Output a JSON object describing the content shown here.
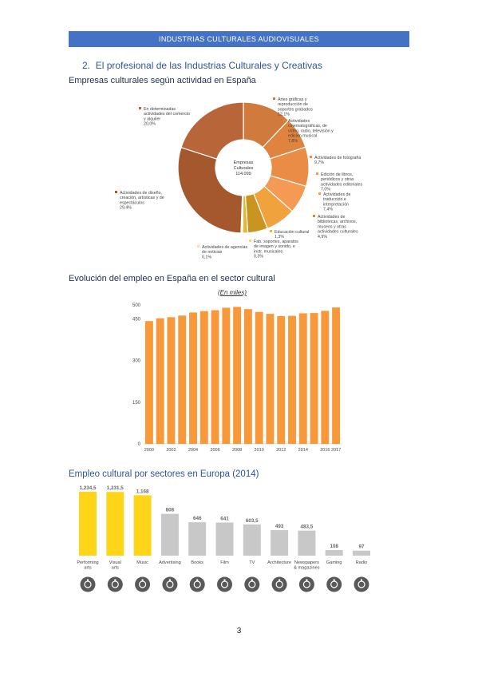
{
  "header": {
    "title": "INDUSTRIAS CULTURALES AUDIOVISUALES"
  },
  "section": {
    "number": "2.",
    "title": "El profesional de las Industrias Culturales y Creativas"
  },
  "chart1": {
    "heading": "Empresas culturales según actividad en España",
    "center_label_1": "Empresas",
    "center_label_2": "Culturales",
    "center_value": "114.099"
  },
  "chart2": {
    "heading": "Evolución del empleo en España en el sector cultural",
    "subtitle": "(En miles)"
  },
  "chart3": {
    "heading": "Empleo cultural por sectores en Europa (2014)"
  },
  "page": {
    "number": "3"
  },
  "icons": [
    "performing-arts-icon",
    "visual-arts-icon",
    "music-icon",
    "advertising-icon",
    "books-icon",
    "film-icon",
    "tv-icon",
    "architecture-icon",
    "newspapers-icon",
    "gaming-icon",
    "radio-icon"
  ],
  "chart_data": [
    {
      "type": "pie",
      "slices": [
        {
          "label_lines": [
            "Artes gráficas y",
            "reproducción de",
            "soportes grabados"
          ],
          "value_label": "12,1%",
          "value": 12.1,
          "color": "#d17a3d"
        },
        {
          "label_lines": [
            "Actividades",
            "cinematográficas, de",
            "vídeo, radio, televisión y",
            "edición musical"
          ],
          "value_label": "7,8%",
          "value": 7.8,
          "color": "#e0833f"
        },
        {
          "label_lines": [
            "Actividades de fotografía"
          ],
          "value_label": "9,7%",
          "value": 9.7,
          "color": "#ea8c45"
        },
        {
          "label_lines": [
            "Edición de libros,",
            "periódicos y otras",
            "actividades editoriales"
          ],
          "value_label": "7,0%",
          "value": 7.0,
          "color": "#f49a55"
        },
        {
          "label_lines": [
            "Actividades de",
            "traducción e",
            "interpretación"
          ],
          "value_label": "7,4%",
          "value": 7.4,
          "color": "#f0a23c"
        },
        {
          "label_lines": [
            "Actividades de",
            "bibliotecas, archivos,",
            "museos y otras",
            "actividades culturales"
          ],
          "value_label": "4,9%",
          "value": 4.9,
          "color": "#c9941f"
        },
        {
          "label_lines": [
            "Educación cultural"
          ],
          "value_label": "1,3%",
          "value": 1.3,
          "color": "#e6b83a"
        },
        {
          "label_lines": [
            "Fab. soportes, aparatos",
            "de imagen y sonido, e",
            "instr. musicales"
          ],
          "value_label": "0,3%",
          "value": 0.3,
          "color": "#f5d57e"
        },
        {
          "label_lines": [
            "Actividades de agencias",
            "de noticias"
          ],
          "value_label": "0,1%",
          "value": 0.1,
          "color": "#f9dfa0"
        },
        {
          "label_lines": [
            "Actividades de diseño,",
            "creación, artísticas y de",
            "espectáculos"
          ],
          "value_label": "29,4%",
          "value": 29.4,
          "color": "#a5582e"
        },
        {
          "label_lines": [
            "En determinadas",
            "actividades del comercio",
            "y alquiler"
          ],
          "value_label": "20,0%",
          "value": 20.0,
          "color": "#b8653a"
        }
      ]
    },
    {
      "type": "bar",
      "subtitle": "(En miles)",
      "years": [
        2000,
        2001,
        2002,
        2003,
        2004,
        2005,
        2006,
        2007,
        2008,
        2009,
        2010,
        2011,
        2012,
        2013,
        2014,
        2015,
        2016,
        2017
      ],
      "x_tick_labels": [
        "2000",
        "2002",
        "2004",
        "2006",
        "2008",
        "2010",
        "2012",
        "2014",
        "2016",
        "2017"
      ],
      "values": [
        442,
        452,
        456,
        462,
        473,
        478,
        481,
        490,
        493,
        485,
        475,
        468,
        460,
        461,
        470,
        471,
        479,
        491
      ],
      "y_ticks": [
        0,
        150,
        300,
        450,
        500
      ],
      "y_tick_labels": [
        "0",
        "150",
        "300",
        "450",
        "500"
      ],
      "color": "#f7983a"
    },
    {
      "type": "bar",
      "categories": [
        "Performing arts",
        "Visual arts",
        "Music",
        "Advertising",
        "Books",
        "Film",
        "TV",
        "Architecture",
        "Newspapers & magazines",
        "Gaming",
        "Radio"
      ],
      "category_lines": [
        [
          "Performing",
          "arts"
        ],
        [
          "Visual",
          "arts"
        ],
        [
          "Music"
        ],
        [
          "Advertising"
        ],
        [
          "Books"
        ],
        [
          "Film"
        ],
        [
          "TV"
        ],
        [
          "Architecture"
        ],
        [
          "Newspapers",
          "& magazines"
        ],
        [
          "Gaming"
        ],
        [
          "Radio"
        ]
      ],
      "values": [
        1234.5,
        1231.5,
        1168,
        808,
        646,
        641,
        603.5,
        493,
        483.5,
        108,
        97
      ],
      "value_labels": [
        "1,234,5",
        "1,231,5",
        "1,168",
        "808",
        "646",
        "641",
        "603,5",
        "493",
        "483,5",
        "108",
        "97"
      ],
      "highlight_color": "#ffd51a",
      "base_color": "#c8c8c8",
      "highlighted_count": 3
    }
  ]
}
